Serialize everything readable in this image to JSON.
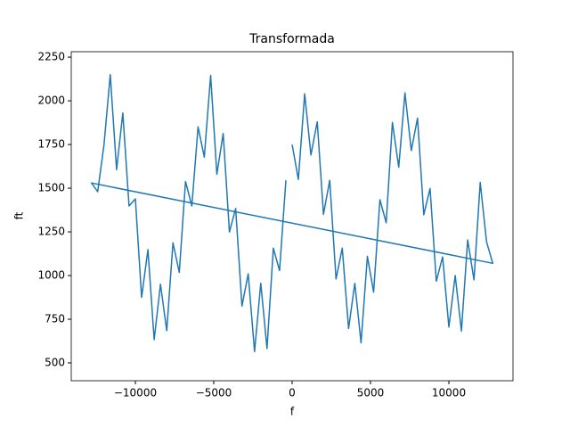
{
  "chart_data": {
    "type": "line",
    "title": "Transformada",
    "x_label": "f",
    "y_label": "ft",
    "xlim": [
      -14090,
      14090
    ],
    "ylim": [
      398,
      2281
    ],
    "xticks": [
      {
        "value": -10000,
        "label": "−10000"
      },
      {
        "value": -5000,
        "label": "−5000"
      },
      0,
      5000,
      10000
    ],
    "yticks": [
      500,
      750,
      1000,
      1250,
      1500,
      1750,
      2000,
      2250
    ],
    "series": [
      {
        "color": "#1f77b4",
        "x": [
          0,
          400,
          800,
          1200,
          1600,
          2000,
          2400,
          2800,
          3200,
          3600,
          4000,
          4400,
          4800,
          5200,
          5600,
          6000,
          6400,
          6800,
          7200,
          7600,
          8000,
          8400,
          8800,
          9200,
          9600,
          10000,
          10400,
          10800,
          11200,
          11600,
          12000,
          12400,
          12800,
          -12800,
          -12400,
          -12000,
          -11600,
          -11200,
          -10800,
          -10400,
          -10000,
          -9600,
          -9200,
          -8800,
          -8400,
          -8000,
          -7600,
          -7200,
          -6800,
          -6400,
          -6000,
          -5600,
          -5200,
          -4800,
          -4400,
          -4000,
          -3600,
          -3200,
          -2800,
          -2400,
          -2000,
          -1600,
          -1200,
          -800,
          -400
        ],
        "values": [
          1750,
          1550,
          2040,
          1690,
          1880,
          1350,
          1545,
          980,
          1157,
          697,
          956,
          615,
          1110,
          905,
          1434,
          1302,
          1876,
          1620,
          2046,
          1715,
          1901,
          1348,
          1498,
          968,
          1107,
          705,
          1000,
          683,
          1204,
          975,
          1533,
          1193,
          1070,
          1530,
          1480,
          1750,
          2150,
          1606,
          1930,
          1398,
          1439,
          875,
          1148,
          633,
          950,
          685,
          1187,
          1018,
          1538,
          1398,
          1851,
          1678,
          2146,
          1580,
          1813,
          1249,
          1384,
          825,
          1010,
          565,
          956,
          582,
          1157,
          1028,
          1545
        ]
      }
    ]
  }
}
